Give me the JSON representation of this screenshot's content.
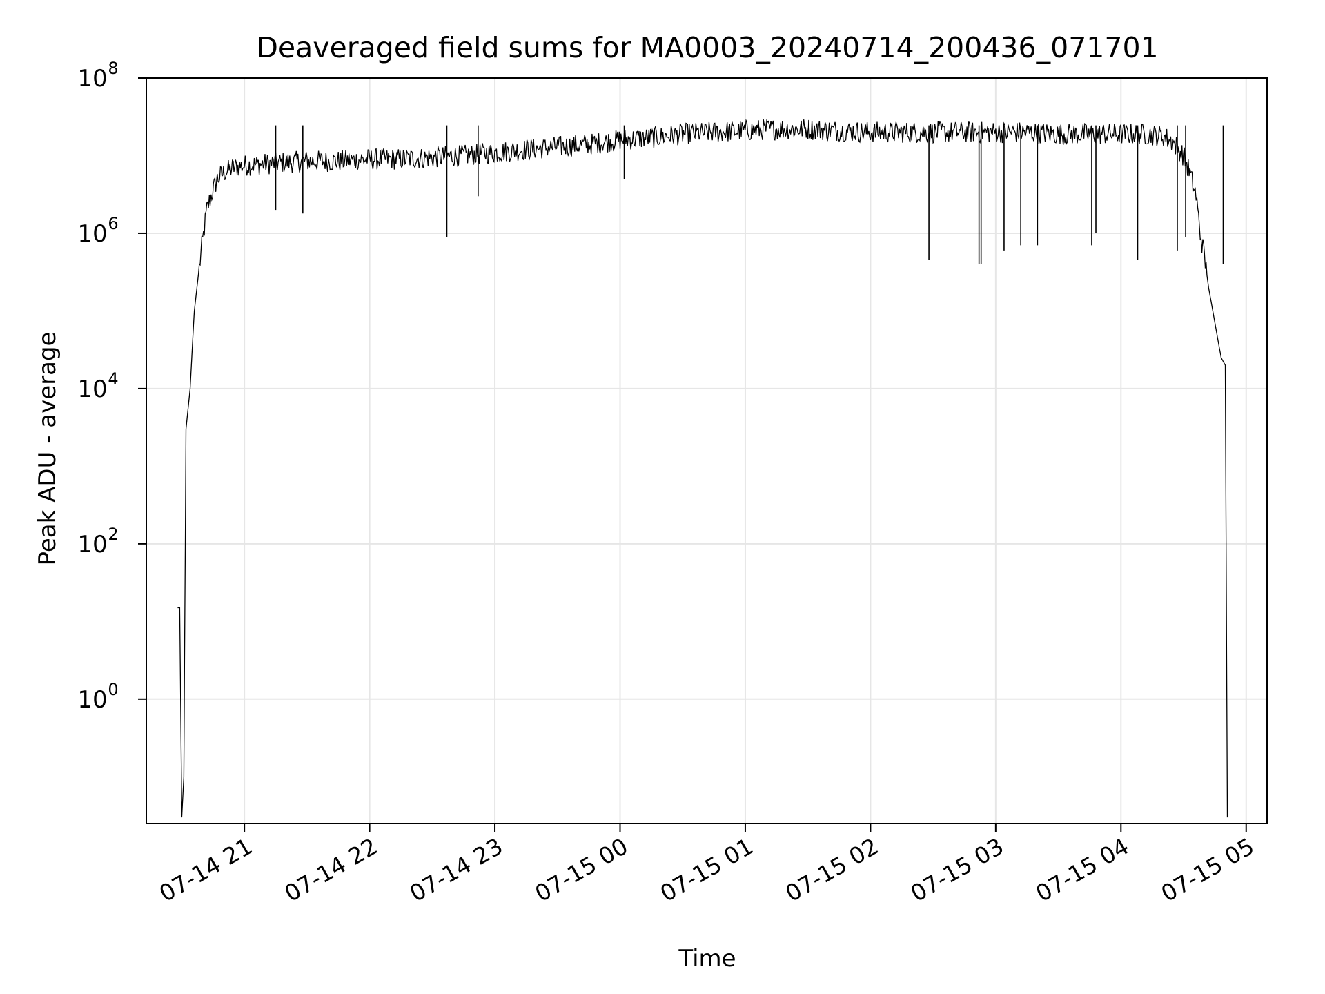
{
  "chart_data": {
    "type": "line",
    "title": "Deaveraged field sums for MA0003_20240714_200436_071701",
    "xlabel": "Time",
    "ylabel": "Peak ADU - average",
    "y_scale": "log",
    "ylim": [
      0.025,
      100000000
    ],
    "xlim": [
      "2024-07-14 20:13",
      "2024-07-15 05:10"
    ],
    "grid": true,
    "line_color": "#000000",
    "x_ticks": [
      {
        "t": "2024-07-14 21:00",
        "label": "07-14 21"
      },
      {
        "t": "2024-07-14 22:00",
        "label": "07-14 22"
      },
      {
        "t": "2024-07-14 23:00",
        "label": "07-14 23"
      },
      {
        "t": "2024-07-15 00:00",
        "label": "07-15 00"
      },
      {
        "t": "2024-07-15 01:00",
        "label": "07-15 01"
      },
      {
        "t": "2024-07-15 02:00",
        "label": "07-15 02"
      },
      {
        "t": "2024-07-15 03:00",
        "label": "07-15 03"
      },
      {
        "t": "2024-07-15 04:00",
        "label": "07-15 04"
      },
      {
        "t": "2024-07-15 05:00",
        "label": "07-15 05"
      }
    ],
    "y_ticks": [
      {
        "v": 1,
        "base": "10",
        "exp": "0"
      },
      {
        "v": 100,
        "base": "10",
        "exp": "2"
      },
      {
        "v": 10000,
        "base": "10",
        "exp": "4"
      },
      {
        "v": 1000000,
        "base": "10",
        "exp": "6"
      },
      {
        "v": 100000000,
        "base": "10",
        "exp": "8"
      }
    ],
    "series": [
      {
        "x": [
          "2024-07-14 20:28",
          "2024-07-14 20:29",
          "2024-07-14 20:30",
          "2024-07-14 20:31",
          "2024-07-14 20:32",
          "2024-07-14 20:34",
          "2024-07-14 20:36",
          "2024-07-14 20:38",
          "2024-07-14 20:40",
          "2024-07-14 20:42",
          "2024-07-14 20:44",
          "2024-07-14 20:47",
          "2024-07-14 20:50",
          "2024-07-14 20:55",
          "2024-07-14 21:00",
          "2024-07-14 21:15",
          "2024-07-14 21:30",
          "2024-07-14 21:45",
          "2024-07-14 22:00",
          "2024-07-14 22:15",
          "2024-07-14 22:30",
          "2024-07-14 22:45",
          "2024-07-14 23:00",
          "2024-07-14 23:15",
          "2024-07-14 23:30",
          "2024-07-14 23:45",
          "2024-07-15 00:00",
          "2024-07-15 00:15",
          "2024-07-15 00:30",
          "2024-07-15 00:45",
          "2024-07-15 01:00",
          "2024-07-15 01:15",
          "2024-07-15 01:30",
          "2024-07-15 01:45",
          "2024-07-15 02:00",
          "2024-07-15 02:15",
          "2024-07-15 02:30",
          "2024-07-15 02:45",
          "2024-07-15 03:00",
          "2024-07-15 03:15",
          "2024-07-15 03:30",
          "2024-07-15 03:45",
          "2024-07-15 04:00",
          "2024-07-15 04:10",
          "2024-07-15 04:20",
          "2024-07-15 04:25",
          "2024-07-15 04:30",
          "2024-07-15 04:33",
          "2024-07-15 04:36",
          "2024-07-15 04:38",
          "2024-07-15 04:40",
          "2024-07-15 04:42",
          "2024-07-15 04:44",
          "2024-07-15 04:46",
          "2024-07-15 04:48",
          "2024-07-15 04:50",
          "2024-07-15 04:51"
        ],
        "y": [
          15,
          15,
          0.03,
          0.1,
          3000,
          10000,
          100000,
          300000,
          800000,
          2000000,
          3000000,
          5000000,
          6000000,
          7000000,
          7500000,
          8000000,
          8500000,
          8500000,
          9000000,
          9000000,
          9500000,
          10000000,
          11000000,
          12000000,
          13000000,
          14000000,
          16000000,
          17000000,
          19000000,
          20000000,
          21000000,
          22000000,
          22000000,
          21000000,
          20000000,
          20000000,
          20000000,
          20000000,
          20000000,
          20000000,
          19000000,
          19000000,
          19000000,
          19000000,
          18000000,
          15000000,
          10000000,
          6000000,
          3000000,
          1000000,
          500000,
          200000,
          100000,
          50000,
          25000,
          20000,
          0.03
        ],
        "dips": [
          {
            "t": "2024-07-14 21:15",
            "v": 2000000
          },
          {
            "t": "2024-07-14 21:28",
            "v": 1800000
          },
          {
            "t": "2024-07-14 22:37",
            "v": 900000
          },
          {
            "t": "2024-07-14 22:52",
            "v": 3000000
          },
          {
            "t": "2024-07-15 00:02",
            "v": 5000000
          },
          {
            "t": "2024-07-15 02:28",
            "v": 450000
          },
          {
            "t": "2024-07-15 02:52",
            "v": 400000
          },
          {
            "t": "2024-07-15 02:53",
            "v": 400000
          },
          {
            "t": "2024-07-15 03:04",
            "v": 600000
          },
          {
            "t": "2024-07-15 03:12",
            "v": 700000
          },
          {
            "t": "2024-07-15 03:20",
            "v": 700000
          },
          {
            "t": "2024-07-15 03:46",
            "v": 700000
          },
          {
            "t": "2024-07-15 03:48",
            "v": 1000000
          },
          {
            "t": "2024-07-15 04:08",
            "v": 450000
          },
          {
            "t": "2024-07-15 04:27",
            "v": 600000
          },
          {
            "t": "2024-07-15 04:31",
            "v": 900000
          },
          {
            "t": "2024-07-15 04:49",
            "v": 400000
          }
        ]
      }
    ]
  }
}
